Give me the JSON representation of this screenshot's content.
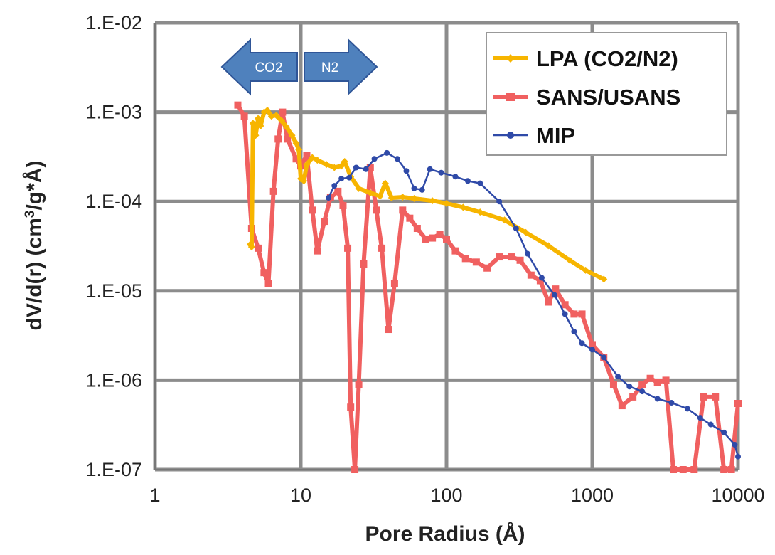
{
  "chart_data": {
    "type": "line",
    "title": "",
    "xlabel": "Pore Radius (Å)",
    "ylabel_parts": [
      "dV/d(r) (cm",
      "3",
      "/g*Å)"
    ],
    "x_scale": "log",
    "y_scale": "log",
    "xlim": [
      1,
      10000
    ],
    "ylim": [
      1e-07,
      0.01
    ],
    "x_ticks": [
      1,
      10,
      100,
      1000,
      10000
    ],
    "x_tick_labels": [
      "1",
      "10",
      "100",
      "1000",
      "10000"
    ],
    "y_ticks": [
      1e-07,
      1e-06,
      1e-05,
      0.0001,
      0.001,
      0.01
    ],
    "y_tick_labels": [
      "1.E-07",
      "1.E-06",
      "1.E-05",
      "1.E-04",
      "1.E-03",
      "1.E-02"
    ],
    "grid": true,
    "legend_position": "top-right",
    "annotations": [
      {
        "text": "CO2",
        "direction": "left",
        "color": "#4f81bd"
      },
      {
        "text": "N2",
        "direction": "right",
        "color": "#4f81bd"
      }
    ],
    "series": [
      {
        "name": "LPA (CO2/N2)",
        "color": "#f7b500",
        "marker": "diamond",
        "points": [
          [
            4.5,
            3.3e-05
          ],
          [
            4.6,
            3.1e-05
          ],
          [
            4.7,
            0.00075
          ],
          [
            4.9,
            0.00055
          ],
          [
            5.1,
            0.00085
          ],
          [
            5.3,
            0.0007
          ],
          [
            5.6,
            0.001
          ],
          [
            5.9,
            0.00105
          ],
          [
            6.3,
            0.0009
          ],
          [
            6.8,
            0.00092
          ],
          [
            7.4,
            0.0008
          ],
          [
            8.0,
            0.00068
          ],
          [
            8.7,
            0.00055
          ],
          [
            9.3,
            0.00045
          ],
          [
            9.7,
            0.00038
          ],
          [
            10.0,
            0.00018
          ],
          [
            10.5,
            0.00017
          ],
          [
            11.0,
            0.00026
          ],
          [
            12.0,
            0.00031
          ],
          [
            13.0,
            0.00029
          ],
          [
            15.0,
            0.00026
          ],
          [
            17.0,
            0.00024
          ],
          [
            19.0,
            0.00025
          ],
          [
            20.0,
            0.00028
          ],
          [
            22.0,
            0.00019
          ],
          [
            25.0,
            0.00014
          ],
          [
            30.0,
            0.000125
          ],
          [
            35.0,
            0.000115
          ],
          [
            38.0,
            0.00016
          ],
          [
            42.0,
            0.00011
          ],
          [
            50.0,
            0.000112
          ],
          [
            60.0,
            0.000108
          ],
          [
            80.0,
            0.000102
          ],
          [
            100.0,
            9.5e-05
          ],
          [
            130.0,
            8.6e-05
          ],
          [
            170.0,
            7.6e-05
          ],
          [
            250.0,
            6.2e-05
          ],
          [
            350.0,
            4.5e-05
          ],
          [
            500.0,
            3.2e-05
          ],
          [
            700.0,
            2.2e-05
          ],
          [
            900.0,
            1.7e-05
          ],
          [
            1200.0,
            1.35e-05
          ]
        ]
      },
      {
        "name": "SANS/USANS",
        "color": "#f06060",
        "marker": "square",
        "points": [
          [
            3.7,
            0.0012
          ],
          [
            4.1,
            0.0009
          ],
          [
            4.6,
            5e-05
          ],
          [
            5.1,
            3e-05
          ],
          [
            5.6,
            1.6e-05
          ],
          [
            6.0,
            1.2e-05
          ],
          [
            6.5,
            0.00013
          ],
          [
            7.0,
            0.0005
          ],
          [
            7.5,
            0.001
          ],
          [
            8.1,
            0.0005
          ],
          [
            9.3,
            0.0003
          ],
          [
            10.0,
            0.00025
          ],
          [
            11.0,
            0.00033
          ],
          [
            12.0,
            8e-05
          ],
          [
            13.0,
            2.8e-05
          ],
          [
            14.5,
            6e-05
          ],
          [
            16.0,
            0.00011
          ],
          [
            18.0,
            0.00013
          ],
          [
            19.5,
            9e-05
          ],
          [
            21.0,
            3e-05
          ],
          [
            22.0,
            5e-07
          ],
          [
            23.5,
            1e-07
          ],
          [
            25.0,
            9e-07
          ],
          [
            27.0,
            2e-05
          ],
          [
            30.0,
            0.00024
          ],
          [
            33.0,
            8e-05
          ],
          [
            36.0,
            3e-05
          ],
          [
            40.0,
            3.7e-06
          ],
          [
            44.0,
            1.2e-05
          ],
          [
            50.0,
            8e-05
          ],
          [
            56.0,
            6.5e-05
          ],
          [
            63.0,
            5e-05
          ],
          [
            72.0,
            3.8e-05
          ],
          [
            80.0,
            3.9e-05
          ],
          [
            90.0,
            4.3e-05
          ],
          [
            100.0,
            3.8e-05
          ],
          [
            115.0,
            2.8e-05
          ],
          [
            135.0,
            2.3e-05
          ],
          [
            160.0,
            2.1e-05
          ],
          [
            190.0,
            1.8e-05
          ],
          [
            230.0,
            2.4e-05
          ],
          [
            280.0,
            2.4e-05
          ],
          [
            320.0,
            2.2e-05
          ],
          [
            380.0,
            1.5e-05
          ],
          [
            440.0,
            1.3e-05
          ],
          [
            500.0,
            7.5e-06
          ],
          [
            560.0,
            1.05e-05
          ],
          [
            650.0,
            7e-06
          ],
          [
            750.0,
            5.5e-06
          ],
          [
            850.0,
            5.5e-06
          ],
          [
            1000.0,
            2.5e-06
          ],
          [
            1200.0,
            1.8e-06
          ],
          [
            1400.0,
            9e-07
          ],
          [
            1600.0,
            5.2e-07
          ],
          [
            1900.0,
            6.5e-07
          ],
          [
            2200.0,
            9e-07
          ],
          [
            2500.0,
            1.05e-06
          ],
          [
            2800.0,
            9.5e-07
          ],
          [
            3200.0,
            1e-06
          ],
          [
            3600.0,
            1e-07
          ],
          [
            4200.0,
            1e-07
          ],
          [
            5000.0,
            1e-07
          ],
          [
            5800.0,
            6.5e-07
          ],
          [
            7000.0,
            6.5e-07
          ],
          [
            8000.0,
            1e-07
          ],
          [
            9000.0,
            1e-07
          ],
          [
            10000.0,
            5.5e-07
          ]
        ]
      },
      {
        "name": "MIP",
        "color": "#2f4aa8",
        "marker": "circle",
        "points": [
          [
            15.5,
            0.00011
          ],
          [
            17.0,
            0.00015
          ],
          [
            19.0,
            0.00018
          ],
          [
            21.5,
            0.000185
          ],
          [
            24.0,
            0.00024
          ],
          [
            28.0,
            0.00023
          ],
          [
            32.0,
            0.0003
          ],
          [
            39.0,
            0.00035
          ],
          [
            46.0,
            0.0003
          ],
          [
            53.0,
            0.00022
          ],
          [
            60.0,
            0.00014
          ],
          [
            68.0,
            0.000135
          ],
          [
            77.0,
            0.00023
          ],
          [
            92.0,
            0.00021
          ],
          [
            115.0,
            0.00019
          ],
          [
            140.0,
            0.00017
          ],
          [
            170.0,
            0.00016
          ],
          [
            230.0,
            0.0001
          ],
          [
            300.0,
            5e-05
          ],
          [
            360.0,
            2.6e-05
          ],
          [
            450.0,
            1.4e-05
          ],
          [
            550.0,
            9e-06
          ],
          [
            650.0,
            5.5e-06
          ],
          [
            750.0,
            3.5e-06
          ],
          [
            850.0,
            2.6e-06
          ],
          [
            1000.0,
            2.2e-06
          ],
          [
            1200.0,
            1.8e-06
          ],
          [
            1500.0,
            1.1e-06
          ],
          [
            1800.0,
            8.5e-07
          ],
          [
            2200.0,
            7.5e-07
          ],
          [
            2800.0,
            6.2e-07
          ],
          [
            3500.0,
            5.6e-07
          ],
          [
            4500.0,
            4.8e-07
          ],
          [
            5500.0,
            3.8e-07
          ],
          [
            6500.0,
            3.2e-07
          ],
          [
            8000.0,
            2.6e-07
          ],
          [
            9500.0,
            1.9e-07
          ],
          [
            10000.0,
            1.4e-07
          ]
        ]
      }
    ]
  }
}
